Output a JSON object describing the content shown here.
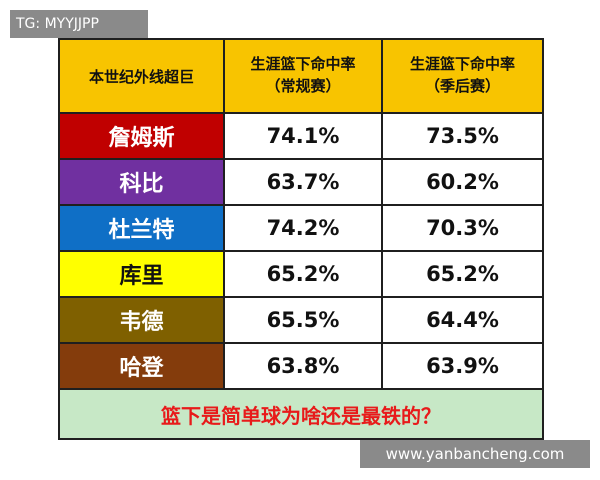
{
  "tg_badge": "TG: MYYJJPP",
  "watermark": "www.yanbancheng.com",
  "table": {
    "header": {
      "col1": "本世纪外线超巨",
      "col2_line1": "生涯篮下命中率",
      "col2_line2": "（常规赛）",
      "col3_line1": "生涯篮下命中率",
      "col3_line2": "（季后赛）"
    },
    "rows": [
      {
        "name": "詹姆斯",
        "regular": "74.1%",
        "playoffs": "73.5%",
        "color": "#c00000"
      },
      {
        "name": "科比",
        "regular": "63.7%",
        "playoffs": "60.2%",
        "color": "#7030a0"
      },
      {
        "name": "杜兰特",
        "regular": "74.2%",
        "playoffs": "70.3%",
        "color": "#0f6fc6"
      },
      {
        "name": "库里",
        "regular": "65.2%",
        "playoffs": "65.2%",
        "color": "#ffff00"
      },
      {
        "name": "韦德",
        "regular": "65.5%",
        "playoffs": "64.4%",
        "color": "#7f6000"
      },
      {
        "name": "哈登",
        "regular": "63.8%",
        "playoffs": "63.9%",
        "color": "#843c0c"
      }
    ],
    "footer": "篮下是简单球为啥还是最铁的？"
  }
}
